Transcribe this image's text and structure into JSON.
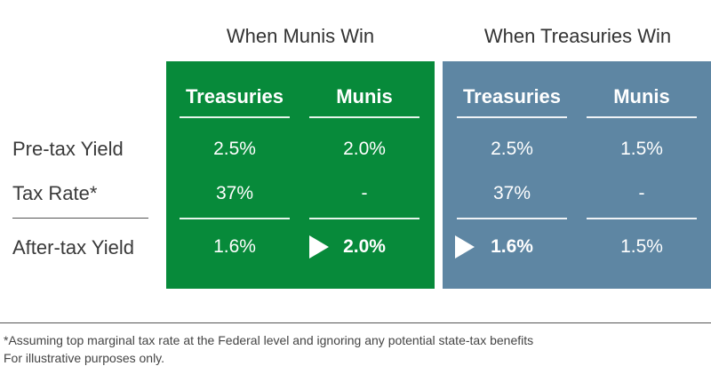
{
  "scenarios": [
    {
      "title": "When Munis Win",
      "columns": [
        "Treasuries",
        "Munis"
      ],
      "pretax": [
        "2.5%",
        "2.0%"
      ],
      "tax_rate": [
        "37%",
        "-"
      ],
      "aftertax": [
        "1.6%",
        "2.0%"
      ],
      "winner": "Munis",
      "color": "#078a3a"
    },
    {
      "title": "When Treasuries Win",
      "columns": [
        "Treasuries",
        "Munis"
      ],
      "pretax": [
        "2.5%",
        "1.5%"
      ],
      "tax_rate": [
        "37%",
        "-"
      ],
      "aftertax": [
        "1.6%",
        "1.5%"
      ],
      "winner": "Treasuries",
      "color": "#5e86a3"
    }
  ],
  "row_labels": {
    "pretax": "Pre-tax Yield",
    "tax_rate": "Tax Rate*",
    "aftertax": "After-tax Yield"
  },
  "footnotes": {
    "assumption": "*Assuming top marginal tax rate at the Federal level and ignoring any potential state-tax benefits",
    "disclaimer": "For illustrative purposes only."
  }
}
